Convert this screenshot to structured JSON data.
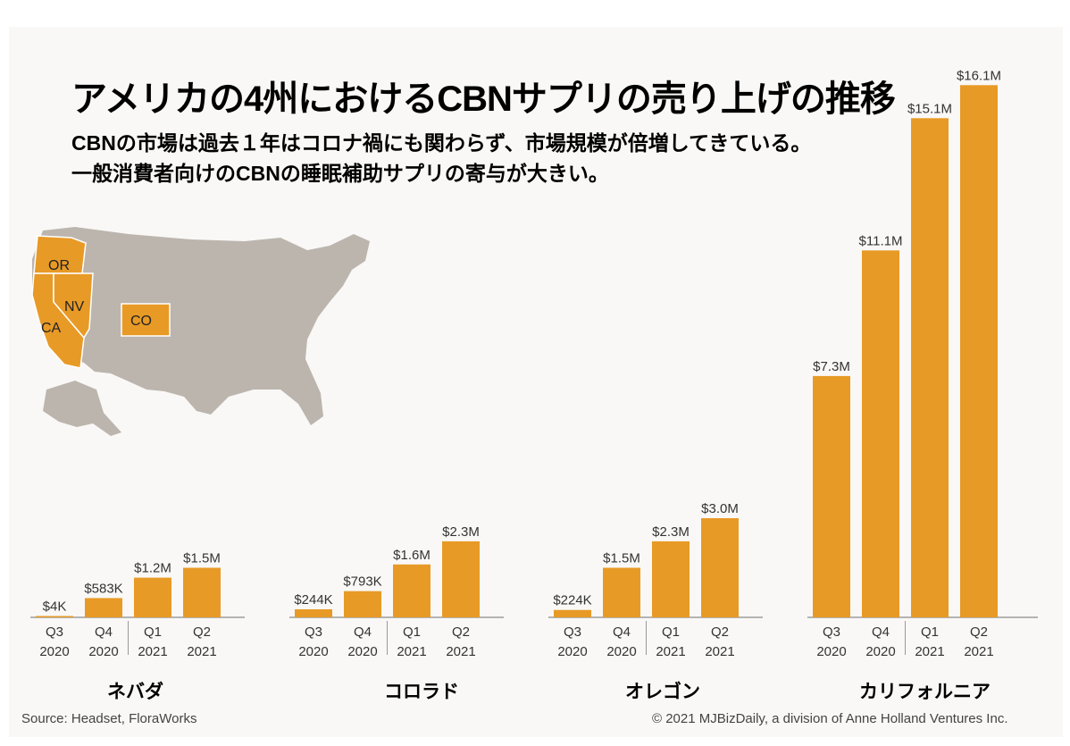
{
  "title": "アメリカの4州におけるCBNサプリの売り上げの推移",
  "subtitle_line1": "CBNの市場は過去１年はコロナ禍にも関わらず、市場規模が倍増してきている。",
  "subtitle_line2": "一般消費者向けのCBNの睡眠補助サプリの寄与が大きい。",
  "map": {
    "labels": [
      "OR",
      "NV",
      "CA",
      "CO"
    ],
    "highlight_color": "#e89a26",
    "base_color": "#bcb5ae"
  },
  "colors": {
    "bar": "#e89a26",
    "text": "#333333",
    "baseline": "#8a8a8a"
  },
  "chart_data": [
    {
      "type": "bar",
      "state": "ネバダ",
      "categories": [
        "Q3 2020",
        "Q4 2020",
        "Q1 2021",
        "Q2 2021"
      ],
      "values": [
        0.004,
        0.583,
        1.2,
        1.5
      ],
      "value_labels": [
        "$4K",
        "$583K",
        "$1.2M",
        "$1.5M"
      ],
      "unit": "$M"
    },
    {
      "type": "bar",
      "state": "コロラド",
      "categories": [
        "Q3 2020",
        "Q4 2020",
        "Q1 2021",
        "Q2 2021"
      ],
      "values": [
        0.244,
        0.793,
        1.6,
        2.3
      ],
      "value_labels": [
        "$244K",
        "$793K",
        "$1.6M",
        "$2.3M"
      ],
      "unit": "$M"
    },
    {
      "type": "bar",
      "state": "オレゴン",
      "categories": [
        "Q3 2020",
        "Q4 2020",
        "Q1 2021",
        "Q2 2021"
      ],
      "values": [
        0.224,
        1.5,
        2.3,
        3.0
      ],
      "value_labels": [
        "$224K",
        "$1.5M",
        "$2.3M",
        "$3.0M"
      ],
      "unit": "$M"
    },
    {
      "type": "bar",
      "state": "カリフォルニア",
      "categories": [
        "Q3 2020",
        "Q4 2020",
        "Q1 2021",
        "Q2 2021"
      ],
      "values": [
        7.3,
        11.1,
        15.1,
        16.1
      ],
      "value_labels": [
        "$7.3M",
        "$11.1M",
        "$15.1M",
        "$16.1M"
      ],
      "unit": "$M"
    }
  ],
  "source": "Source: Headset, FloraWorks",
  "copyright": "© 2021 MJBizDaily, a division of Anne Holland Ventures Inc."
}
